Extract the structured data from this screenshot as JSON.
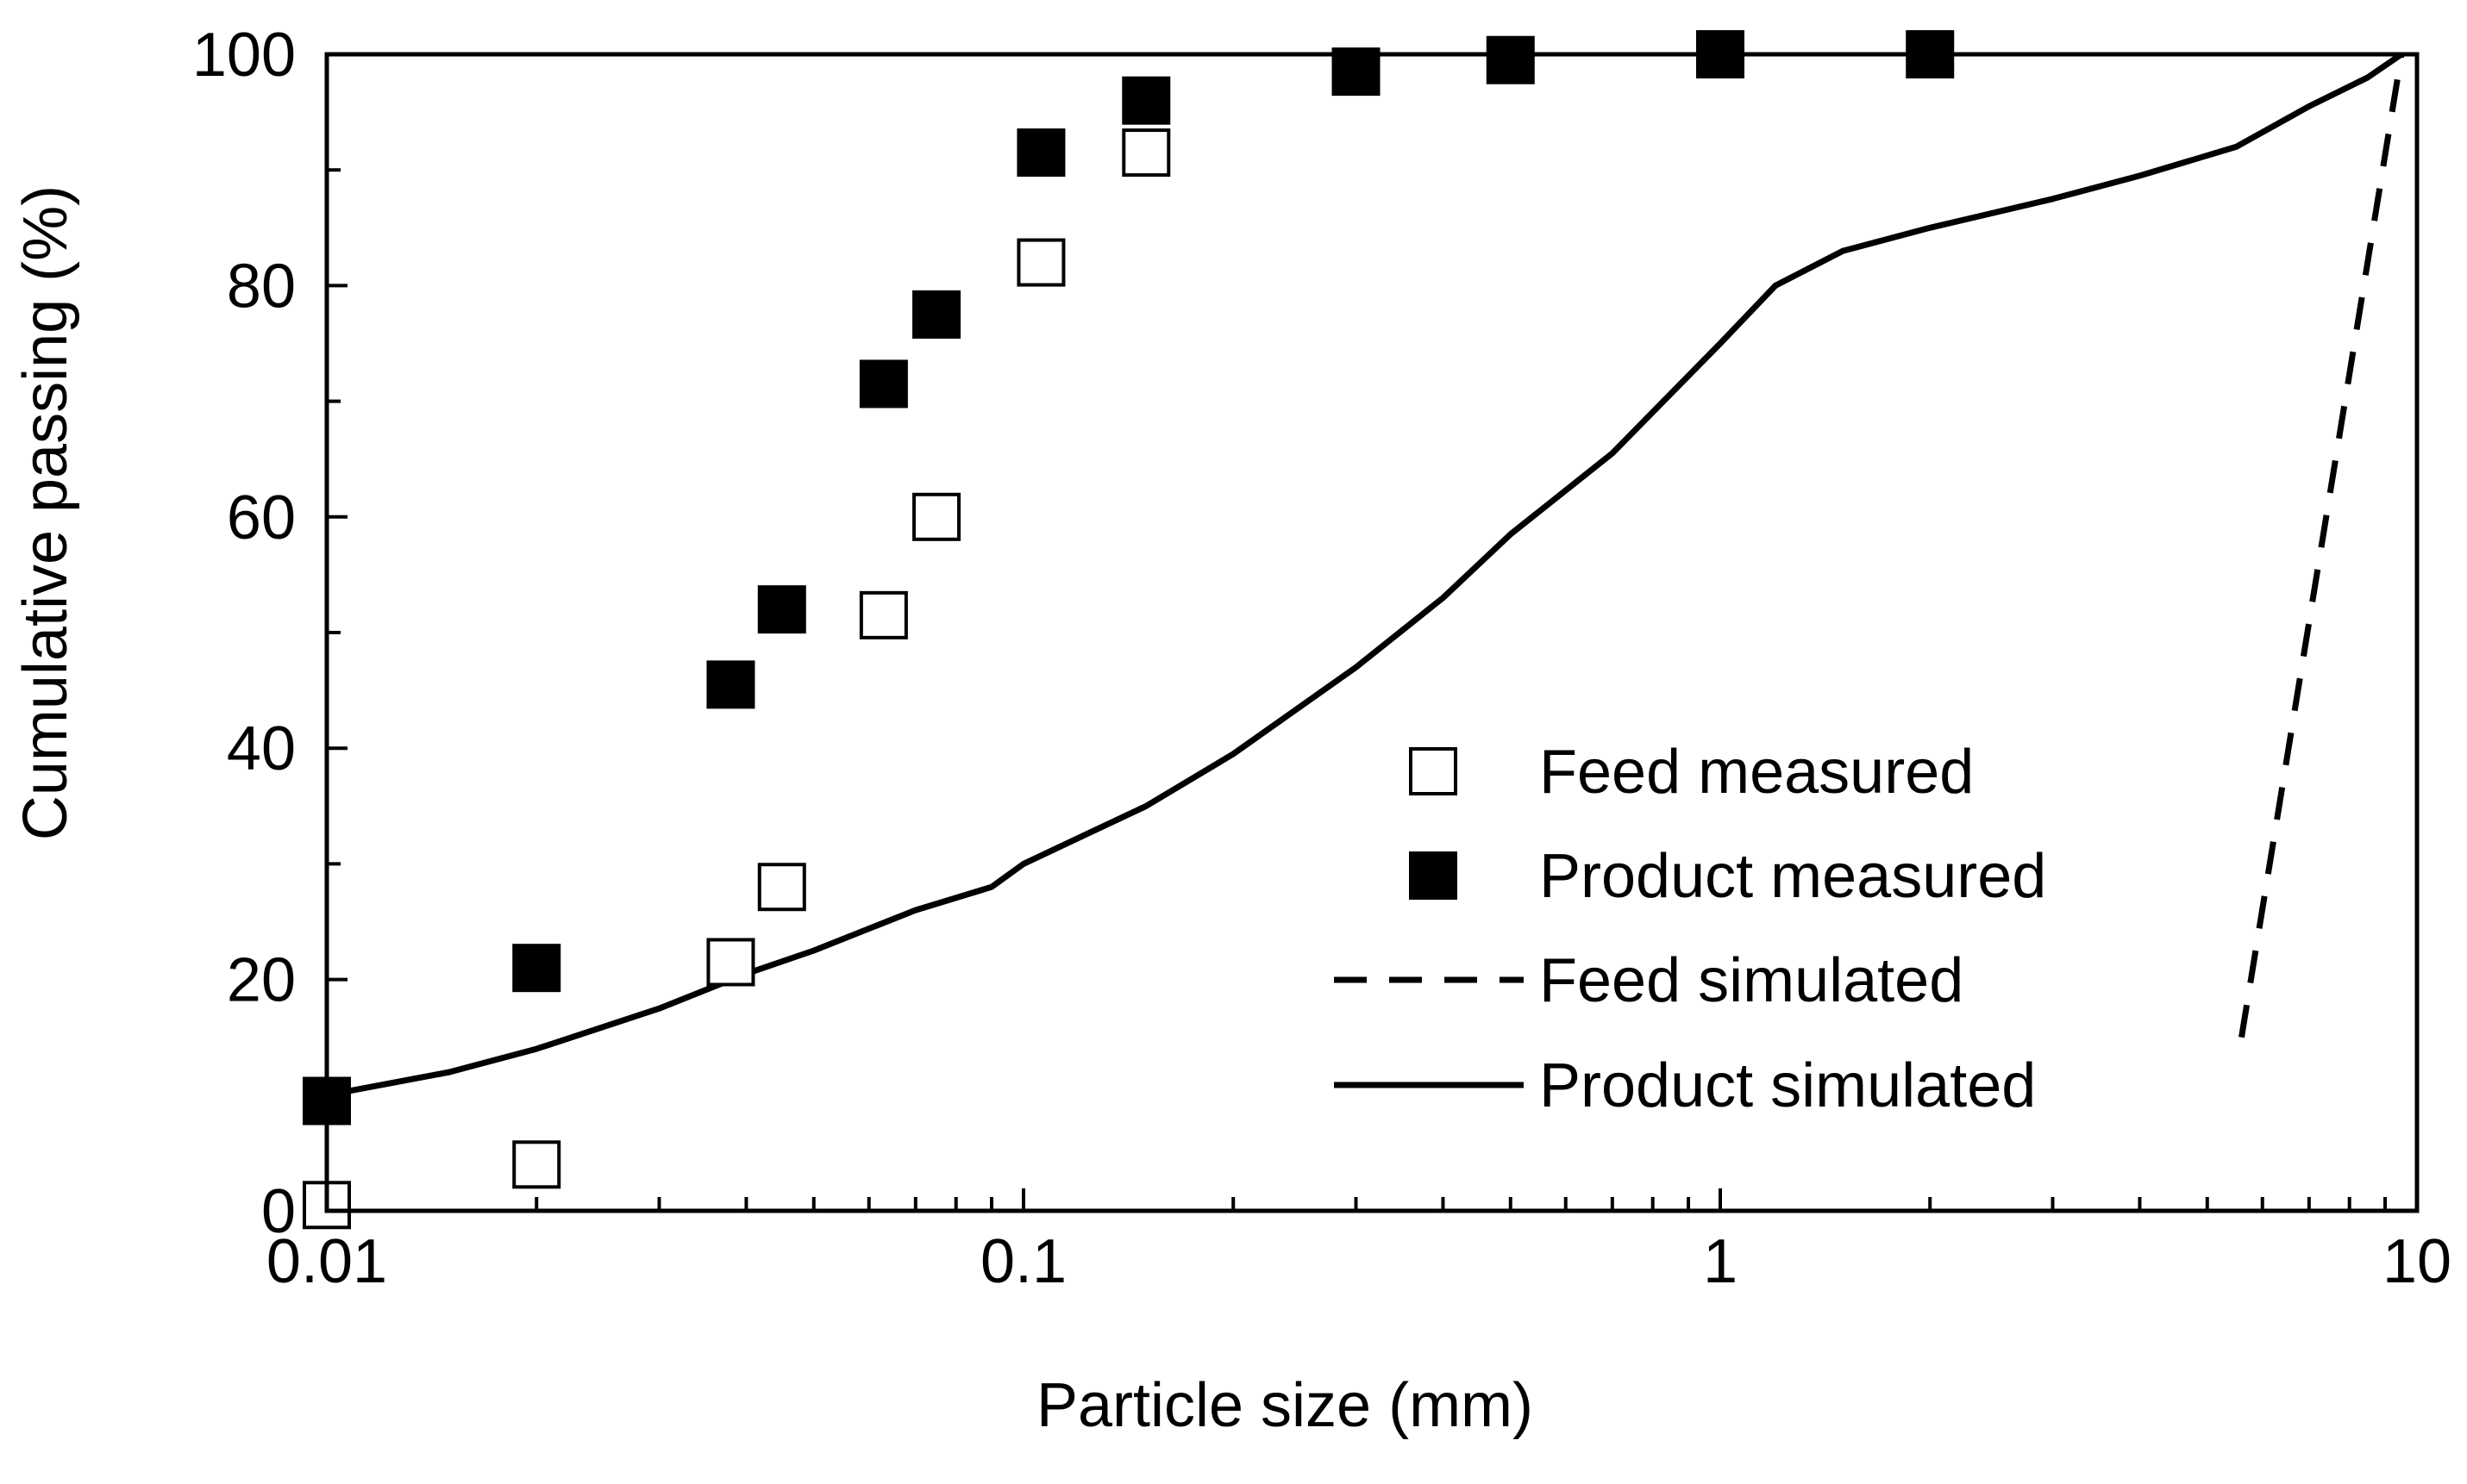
{
  "chart_data": {
    "type": "scatter",
    "title": "",
    "xlabel": "Particle size (mm)",
    "ylabel": "Cumulative passing (%)",
    "xscale": "log",
    "xlim": [
      0.01,
      10
    ],
    "ylim": [
      0,
      100
    ],
    "x_ticks": [
      0.01,
      0.1,
      1,
      10
    ],
    "x_tick_labels": [
      "0.01",
      "0.1",
      "1",
      "10"
    ],
    "y_ticks": [
      0,
      20,
      40,
      60,
      80,
      100
    ],
    "y_tick_labels": [
      "0",
      "20",
      "40",
      "60",
      "80",
      "100"
    ],
    "grid": false,
    "legend_position": "bottom-right",
    "series": [
      {
        "name": "Feed measured",
        "style": "open-square",
        "points": [
          {
            "x": 0.01,
            "y": 0.5
          },
          {
            "x": 0.02,
            "y": 4
          },
          {
            "x": 0.038,
            "y": 21.5
          },
          {
            "x": 0.045,
            "y": 28
          },
          {
            "x": 0.063,
            "y": 51.5
          },
          {
            "x": 0.075,
            "y": 60
          },
          {
            "x": 0.106,
            "y": 82
          },
          {
            "x": 0.15,
            "y": 91.5
          }
        ]
      },
      {
        "name": "Product measured",
        "style": "filled-square",
        "points": [
          {
            "x": 0.01,
            "y": 9.5
          },
          {
            "x": 0.02,
            "y": 21
          },
          {
            "x": 0.038,
            "y": 45.5
          },
          {
            "x": 0.045,
            "y": 52
          },
          {
            "x": 0.063,
            "y": 71.5
          },
          {
            "x": 0.075,
            "y": 77.5
          },
          {
            "x": 0.106,
            "y": 91.5
          },
          {
            "x": 0.15,
            "y": 96
          },
          {
            "x": 0.3,
            "y": 98.5
          },
          {
            "x": 0.5,
            "y": 99.5
          },
          {
            "x": 1,
            "y": 100
          },
          {
            "x": 2,
            "y": 100
          }
        ]
      },
      {
        "name": "Feed simulated",
        "style": "dashed-line",
        "points": [
          {
            "x": 5.6,
            "y": 15
          },
          {
            "x": 9.5,
            "y": 100
          }
        ]
      },
      {
        "name": "Product simulated",
        "style": "solid-line",
        "points": [
          {
            "x": 0.01,
            "y": 10
          },
          {
            "x": 0.015,
            "y": 12
          },
          {
            "x": 0.02,
            "y": 14
          },
          {
            "x": 0.03,
            "y": 17.5
          },
          {
            "x": 0.04,
            "y": 20.5
          },
          {
            "x": 0.05,
            "y": 22.5
          },
          {
            "x": 0.07,
            "y": 26
          },
          {
            "x": 0.09,
            "y": 28
          },
          {
            "x": 0.1,
            "y": 30
          },
          {
            "x": 0.15,
            "y": 35
          },
          {
            "x": 0.2,
            "y": 39.5
          },
          {
            "x": 0.3,
            "y": 47
          },
          {
            "x": 0.4,
            "y": 53
          },
          {
            "x": 0.5,
            "y": 58.5
          },
          {
            "x": 0.7,
            "y": 65.5
          },
          {
            "x": 1.0,
            "y": 75
          },
          {
            "x": 1.2,
            "y": 80
          },
          {
            "x": 1.5,
            "y": 83
          },
          {
            "x": 2.0,
            "y": 85
          },
          {
            "x": 3.0,
            "y": 87.5
          },
          {
            "x": 4.0,
            "y": 89.5
          },
          {
            "x": 5.5,
            "y": 92
          },
          {
            "x": 7.0,
            "y": 95.5
          },
          {
            "x": 8.5,
            "y": 98
          },
          {
            "x": 9.5,
            "y": 100
          }
        ]
      }
    ]
  }
}
